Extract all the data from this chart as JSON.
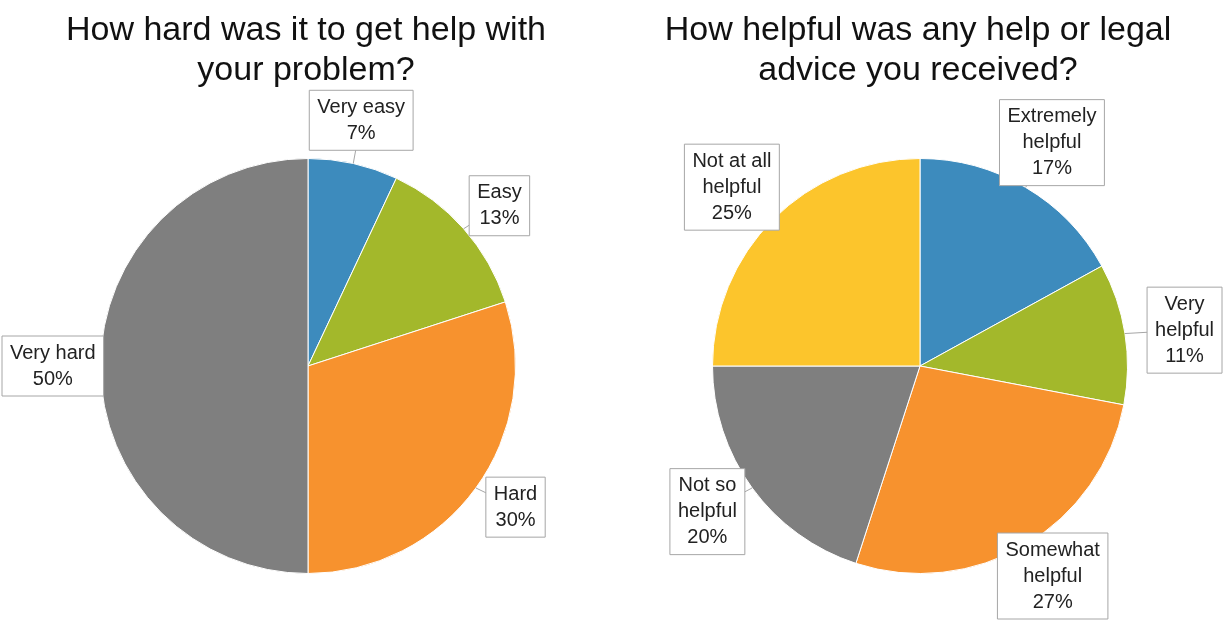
{
  "chart_data": [
    {
      "type": "pie",
      "title": "How hard was it to get help with your problem?",
      "categories": [
        "Very easy",
        "Easy",
        "Hard",
        "Very hard"
      ],
      "values": [
        7,
        13,
        30,
        50
      ],
      "value_labels": [
        "7%",
        "13%",
        "30%",
        "50%"
      ],
      "colors": [
        "#3d8bbd",
        "#a3b82b",
        "#f7922e",
        "#7f7f7f"
      ]
    },
    {
      "type": "pie",
      "title": "How helpful was any help or legal advice you received?",
      "categories": [
        "Extremely helpful",
        "Very helpful",
        "Somewhat helpful",
        "Not so helpful",
        "Not at all helpful"
      ],
      "values": [
        17,
        11,
        27,
        20,
        25
      ],
      "value_labels": [
        "17%",
        "11%",
        "27%",
        "20%",
        "25%"
      ],
      "colors": [
        "#3d8bbd",
        "#a3b82b",
        "#f7922e",
        "#7f7f7f",
        "#fcc52c"
      ]
    }
  ]
}
